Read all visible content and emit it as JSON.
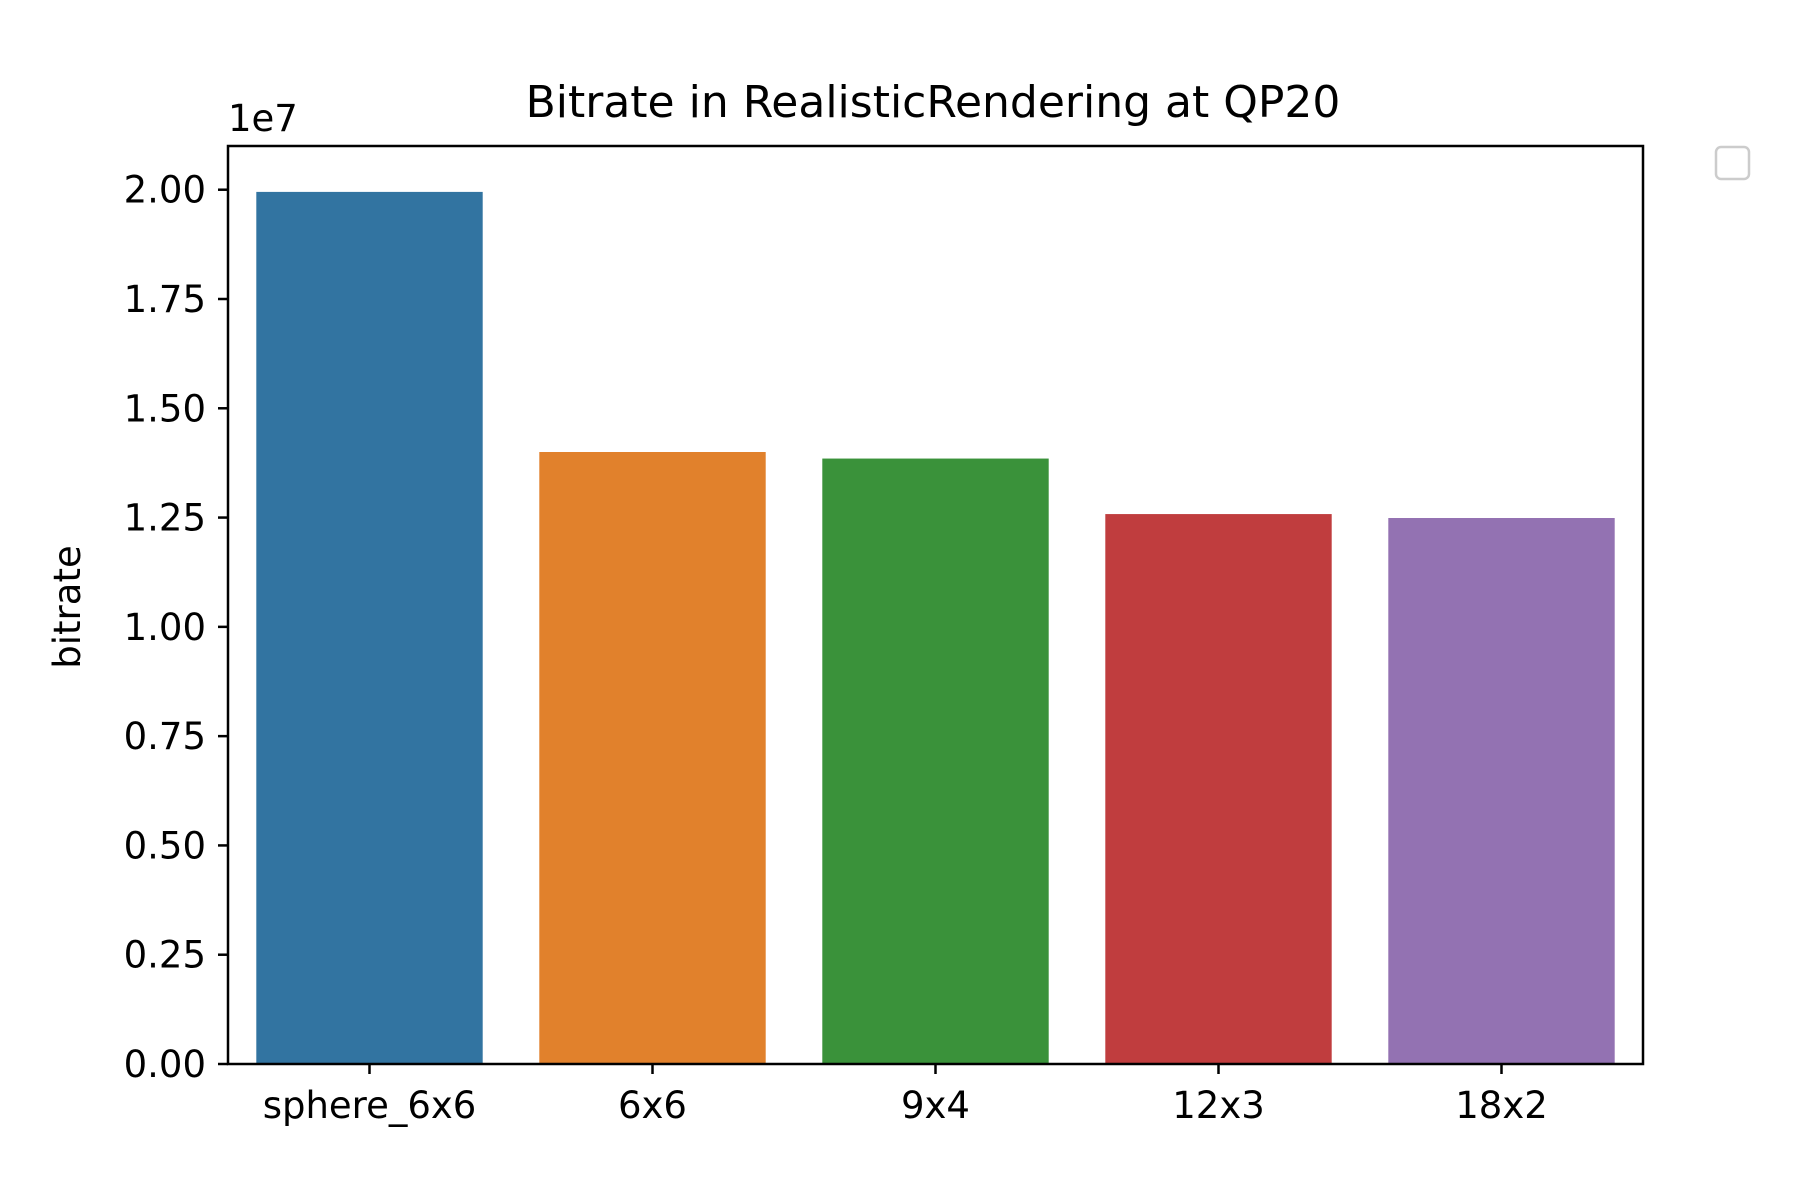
{
  "chart_data": {
    "type": "bar",
    "title": "Bitrate in RealisticRendering at QP20",
    "xlabel": "",
    "ylabel": "bitrate",
    "y_offset_label": "1e7",
    "categories": [
      "sphere_6x6",
      "6x6",
      "9x4",
      "12x3",
      "18x2"
    ],
    "values": [
      19950000,
      14000000,
      13850000,
      12580000,
      12490000
    ],
    "colors": [
      "#3274a1",
      "#e1812c",
      "#3a923a",
      "#c03d3e",
      "#9372b2"
    ],
    "ylim": [
      0,
      21000000
    ],
    "y_scale": 10000000,
    "yticks": [
      0,
      2500000,
      5000000,
      7500000,
      10000000,
      12500000,
      15000000,
      17500000,
      20000000
    ],
    "ytick_labels": [
      "0.00",
      "0.25",
      "0.50",
      "0.75",
      "1.00",
      "1.25",
      "1.50",
      "1.75",
      "2.00"
    ],
    "grid": false,
    "legend": "empty box, upper right outside the plot"
  }
}
